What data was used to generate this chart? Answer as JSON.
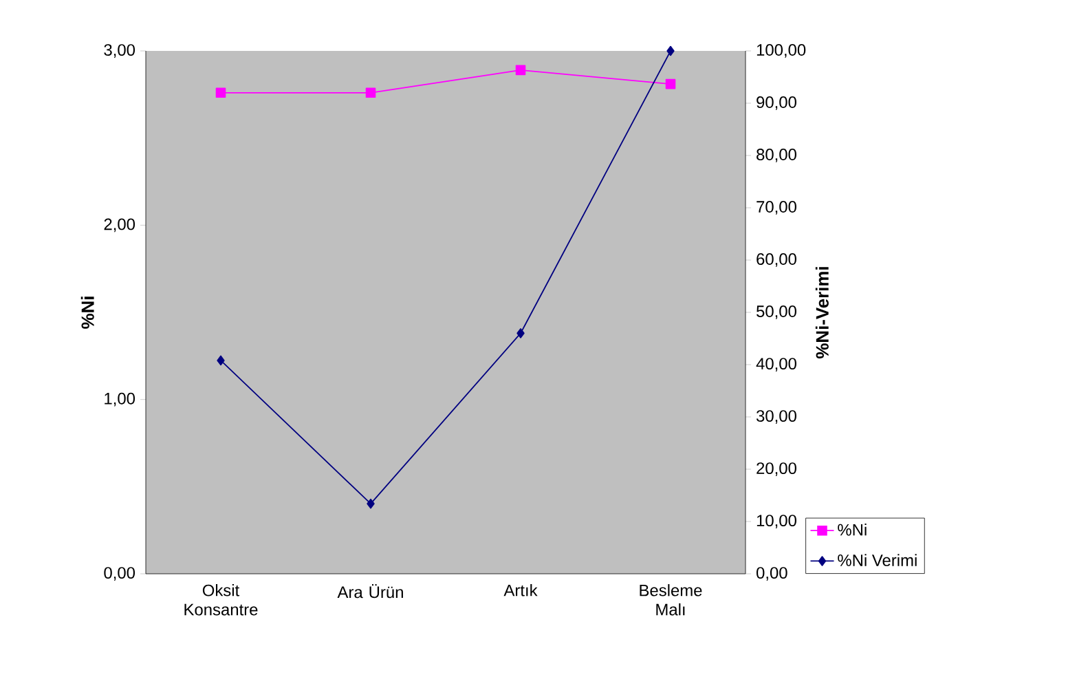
{
  "chart_data": {
    "type": "line",
    "categories": [
      "Oksit Konsantre",
      "Ara Ürün",
      "Artık",
      "Besleme Malı"
    ],
    "series": [
      {
        "name": "%Ni",
        "color": "#ff00ff",
        "marker": "square",
        "values": [
          2.76,
          2.76,
          2.89,
          2.81
        ]
      },
      {
        "name": "%Ni Verimi",
        "color": "#000080",
        "marker": "diamond",
        "axis": "y2",
        "values": [
          40.8,
          13.4,
          46.0,
          100.0
        ]
      }
    ],
    "ylabel": "%Ni",
    "y2label": "%Ni-Verimi",
    "ylim": [
      0,
      3
    ],
    "yticks": [
      {
        "value": 0,
        "label": "0,00"
      },
      {
        "value": 1,
        "label": "1,00"
      },
      {
        "value": 2,
        "label": "2,00"
      },
      {
        "value": 3,
        "label": "3,00"
      }
    ],
    "y2lim": [
      0,
      100
    ],
    "y2ticks": [
      {
        "value": 0,
        "label": "0,00"
      },
      {
        "value": 10,
        "label": "10,00"
      },
      {
        "value": 20,
        "label": "20,00"
      },
      {
        "value": 30,
        "label": "30,00"
      },
      {
        "value": 40,
        "label": "40,00"
      },
      {
        "value": 50,
        "label": "50,00"
      },
      {
        "value": 60,
        "label": "60,00"
      },
      {
        "value": 70,
        "label": "70,00"
      },
      {
        "value": 80,
        "label": "80,00"
      },
      {
        "value": 90,
        "label": "90,00"
      },
      {
        "value": 100,
        "label": "100,00"
      }
    ],
    "legend": "right",
    "grid": false
  }
}
